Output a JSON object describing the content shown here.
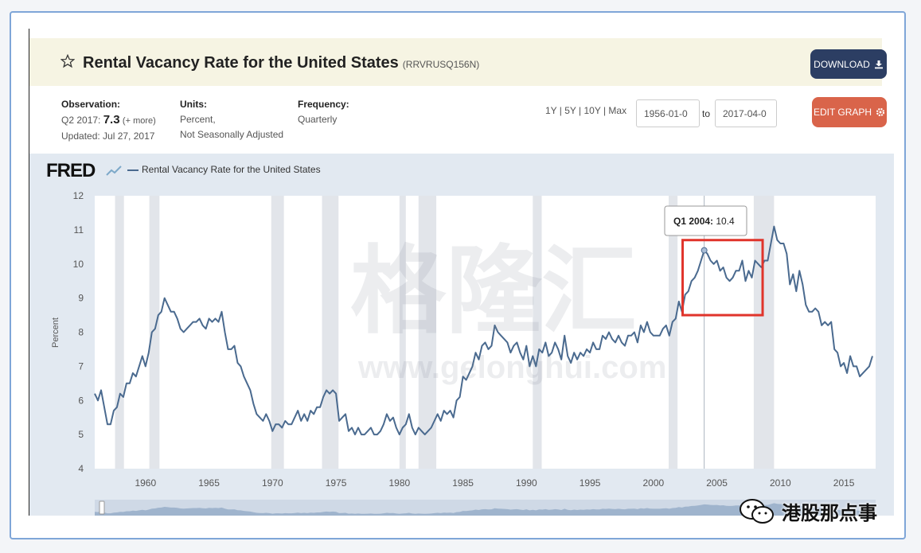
{
  "header": {
    "title": "Rental Vacancy Rate for the United States",
    "series_id": "(RRVRUSQ156N)",
    "download_label": "DOWNLOAD",
    "edit_graph_label": "EDIT GRAPH"
  },
  "meta": {
    "observation_label": "Observation:",
    "observation_period": "Q2 2017:",
    "observation_value": "7.3",
    "observation_more": "(+ more)",
    "updated": "Updated: Jul 27, 2017",
    "units_label": "Units:",
    "units_line1": "Percent,",
    "units_line2": "Not Seasonally Adjusted",
    "frequency_label": "Frequency:",
    "frequency_value": "Quarterly"
  },
  "range": {
    "presets": "1Y | 5Y | 10Y | Max",
    "start": "1956-01-0",
    "to_label": "to",
    "end": "2017-04-0"
  },
  "chart_legend": {
    "logo": "FRED",
    "series_label": "Rental Vacancy Rate for the United States"
  },
  "tooltip": {
    "period": "Q1 2004:",
    "value": "10.4"
  },
  "watermark": {
    "text": "格隆汇",
    "url": "www.gelonghui.com"
  },
  "wechat": {
    "account": "港股那点事"
  },
  "colors": {
    "line": "#4a6a8f",
    "recession": "#e2e5ea",
    "highlight_box": "#e0342b",
    "download": "#2c3e63",
    "edit": "#d9644a"
  },
  "chart_data": {
    "type": "line",
    "ylabel": "Percent",
    "ylim": [
      4,
      12
    ],
    "xlim": [
      1956.0,
      2017.5
    ],
    "yticks": [
      "4",
      "5",
      "6",
      "7",
      "8",
      "9",
      "10",
      "11",
      "12"
    ],
    "xticks": [
      "1960",
      "1965",
      "1970",
      "1975",
      "1980",
      "1985",
      "1990",
      "1995",
      "2000",
      "2005",
      "2010",
      "2015"
    ],
    "recessions": [
      [
        1957.6,
        1958.3
      ],
      [
        1960.3,
        1961.1
      ],
      [
        1969.9,
        1970.9
      ],
      [
        1973.9,
        1975.2
      ],
      [
        1980.0,
        1980.5
      ],
      [
        1981.5,
        1982.9
      ],
      [
        1990.5,
        1991.2
      ],
      [
        2001.2,
        2001.9
      ],
      [
        2007.9,
        2009.5
      ]
    ],
    "highlight": {
      "x": [
        2002.3,
        2008.6
      ],
      "y": [
        8.5,
        10.7
      ]
    },
    "series": [
      {
        "points": [
          [
            1956.0,
            6.2
          ],
          [
            1956.25,
            6.0
          ],
          [
            1956.5,
            6.3
          ],
          [
            1956.75,
            5.8
          ],
          [
            1957.0,
            5.3
          ],
          [
            1957.25,
            5.3
          ],
          [
            1957.5,
            5.7
          ],
          [
            1957.75,
            5.8
          ],
          [
            1958.0,
            6.2
          ],
          [
            1958.25,
            6.1
          ],
          [
            1958.5,
            6.5
          ],
          [
            1958.75,
            6.5
          ],
          [
            1959.0,
            6.8
          ],
          [
            1959.25,
            6.7
          ],
          [
            1959.5,
            7.0
          ],
          [
            1959.75,
            7.3
          ],
          [
            1960.0,
            7.0
          ],
          [
            1960.25,
            7.4
          ],
          [
            1960.5,
            8.0
          ],
          [
            1960.75,
            8.1
          ],
          [
            1961.0,
            8.5
          ],
          [
            1961.25,
            8.6
          ],
          [
            1961.5,
            9.0
          ],
          [
            1961.75,
            8.8
          ],
          [
            1962.0,
            8.6
          ],
          [
            1962.25,
            8.6
          ],
          [
            1962.5,
            8.4
          ],
          [
            1962.75,
            8.1
          ],
          [
            1963.0,
            8.0
          ],
          [
            1963.25,
            8.1
          ],
          [
            1963.5,
            8.2
          ],
          [
            1963.75,
            8.3
          ],
          [
            1964.0,
            8.3
          ],
          [
            1964.25,
            8.4
          ],
          [
            1964.5,
            8.2
          ],
          [
            1964.75,
            8.1
          ],
          [
            1965.0,
            8.4
          ],
          [
            1965.25,
            8.3
          ],
          [
            1965.5,
            8.4
          ],
          [
            1965.75,
            8.3
          ],
          [
            1966.0,
            8.6
          ],
          [
            1966.25,
            8.0
          ],
          [
            1966.5,
            7.5
          ],
          [
            1966.75,
            7.5
          ],
          [
            1967.0,
            7.6
          ],
          [
            1967.25,
            7.1
          ],
          [
            1967.5,
            7.0
          ],
          [
            1967.75,
            6.7
          ],
          [
            1968.0,
            6.5
          ],
          [
            1968.25,
            6.3
          ],
          [
            1968.5,
            5.9
          ],
          [
            1968.75,
            5.6
          ],
          [
            1969.0,
            5.5
          ],
          [
            1969.25,
            5.4
          ],
          [
            1969.5,
            5.6
          ],
          [
            1969.75,
            5.4
          ],
          [
            1970.0,
            5.1
          ],
          [
            1970.25,
            5.3
          ],
          [
            1970.5,
            5.3
          ],
          [
            1970.75,
            5.2
          ],
          [
            1971.0,
            5.4
          ],
          [
            1971.25,
            5.3
          ],
          [
            1971.5,
            5.3
          ],
          [
            1971.75,
            5.5
          ],
          [
            1972.0,
            5.7
          ],
          [
            1972.25,
            5.4
          ],
          [
            1972.5,
            5.6
          ],
          [
            1972.75,
            5.4
          ],
          [
            1973.0,
            5.7
          ],
          [
            1973.25,
            5.6
          ],
          [
            1973.5,
            5.8
          ],
          [
            1973.75,
            5.8
          ],
          [
            1974.0,
            6.1
          ],
          [
            1974.25,
            6.3
          ],
          [
            1974.5,
            6.2
          ],
          [
            1974.75,
            6.3
          ],
          [
            1975.0,
            6.2
          ],
          [
            1975.25,
            5.4
          ],
          [
            1975.5,
            5.5
          ],
          [
            1975.75,
            5.6
          ],
          [
            1976.0,
            5.1
          ],
          [
            1976.25,
            5.2
          ],
          [
            1976.5,
            5.0
          ],
          [
            1976.75,
            5.2
          ],
          [
            1977.0,
            5.0
          ],
          [
            1977.25,
            5.0
          ],
          [
            1977.5,
            5.1
          ],
          [
            1977.75,
            5.2
          ],
          [
            1978.0,
            5.0
          ],
          [
            1978.25,
            5.0
          ],
          [
            1978.5,
            5.1
          ],
          [
            1978.75,
            5.3
          ],
          [
            1979.0,
            5.6
          ],
          [
            1979.25,
            5.4
          ],
          [
            1979.5,
            5.5
          ],
          [
            1979.75,
            5.2
          ],
          [
            1980.0,
            5.0
          ],
          [
            1980.25,
            5.2
          ],
          [
            1980.5,
            5.3
          ],
          [
            1980.75,
            5.6
          ],
          [
            1981.0,
            5.2
          ],
          [
            1981.25,
            5.0
          ],
          [
            1981.5,
            5.2
          ],
          [
            1981.75,
            5.1
          ],
          [
            1982.0,
            5.0
          ],
          [
            1982.25,
            5.1
          ],
          [
            1982.5,
            5.2
          ],
          [
            1982.75,
            5.4
          ],
          [
            1983.0,
            5.6
          ],
          [
            1983.25,
            5.4
          ],
          [
            1983.5,
            5.7
          ],
          [
            1983.75,
            5.6
          ],
          [
            1984.0,
            5.7
          ],
          [
            1984.25,
            5.5
          ],
          [
            1984.5,
            6.0
          ],
          [
            1984.75,
            6.1
          ],
          [
            1985.0,
            6.7
          ],
          [
            1985.25,
            6.6
          ],
          [
            1985.5,
            6.8
          ],
          [
            1985.75,
            7.0
          ],
          [
            1986.0,
            7.4
          ],
          [
            1986.25,
            7.2
          ],
          [
            1986.5,
            7.6
          ],
          [
            1986.75,
            7.7
          ],
          [
            1987.0,
            7.5
          ],
          [
            1987.25,
            7.6
          ],
          [
            1987.5,
            8.2
          ],
          [
            1987.75,
            8.0
          ],
          [
            1988.0,
            7.9
          ],
          [
            1988.25,
            7.8
          ],
          [
            1988.5,
            7.7
          ],
          [
            1988.75,
            7.4
          ],
          [
            1989.0,
            7.6
          ],
          [
            1989.25,
            7.7
          ],
          [
            1989.5,
            7.4
          ],
          [
            1989.75,
            7.2
          ],
          [
            1990.0,
            7.6
          ],
          [
            1990.25,
            7.0
          ],
          [
            1990.5,
            7.3
          ],
          [
            1990.75,
            7.0
          ],
          [
            1991.0,
            7.5
          ],
          [
            1991.25,
            7.4
          ],
          [
            1991.5,
            7.7
          ],
          [
            1991.75,
            7.3
          ],
          [
            1992.0,
            7.4
          ],
          [
            1992.25,
            7.7
          ],
          [
            1992.5,
            7.5
          ],
          [
            1992.75,
            7.2
          ],
          [
            1993.0,
            7.9
          ],
          [
            1993.25,
            7.3
          ],
          [
            1993.5,
            7.1
          ],
          [
            1993.75,
            7.4
          ],
          [
            1994.0,
            7.2
          ],
          [
            1994.25,
            7.4
          ],
          [
            1994.5,
            7.3
          ],
          [
            1994.75,
            7.5
          ],
          [
            1995.0,
            7.4
          ],
          [
            1995.25,
            7.7
          ],
          [
            1995.5,
            7.5
          ],
          [
            1995.75,
            7.5
          ],
          [
            1996.0,
            7.9
          ],
          [
            1996.25,
            7.8
          ],
          [
            1996.5,
            8.0
          ],
          [
            1996.75,
            7.8
          ],
          [
            1997.0,
            7.7
          ],
          [
            1997.25,
            7.9
          ],
          [
            1997.5,
            7.7
          ],
          [
            1997.75,
            7.6
          ],
          [
            1998.0,
            7.9
          ],
          [
            1998.25,
            7.9
          ],
          [
            1998.5,
            8.0
          ],
          [
            1998.75,
            7.7
          ],
          [
            1999.0,
            8.2
          ],
          [
            1999.25,
            8.0
          ],
          [
            1999.5,
            8.3
          ],
          [
            1999.75,
            8.0
          ],
          [
            2000.0,
            7.9
          ],
          [
            2000.25,
            7.9
          ],
          [
            2000.5,
            7.9
          ],
          [
            2000.75,
            8.1
          ],
          [
            2001.0,
            8.2
          ],
          [
            2001.25,
            7.9
          ],
          [
            2001.5,
            8.3
          ],
          [
            2001.75,
            8.4
          ],
          [
            2002.0,
            8.9
          ],
          [
            2002.25,
            8.6
          ],
          [
            2002.5,
            9.1
          ],
          [
            2002.75,
            9.2
          ],
          [
            2003.0,
            9.5
          ],
          [
            2003.25,
            9.6
          ],
          [
            2003.5,
            9.8
          ],
          [
            2003.75,
            10.1
          ],
          [
            2004.0,
            10.4
          ],
          [
            2004.25,
            10.3
          ],
          [
            2004.5,
            10.1
          ],
          [
            2004.75,
            10.0
          ],
          [
            2005.0,
            10.1
          ],
          [
            2005.25,
            9.8
          ],
          [
            2005.5,
            9.9
          ],
          [
            2005.75,
            9.6
          ],
          [
            2006.0,
            9.5
          ],
          [
            2006.25,
            9.6
          ],
          [
            2006.5,
            9.8
          ],
          [
            2006.75,
            9.8
          ],
          [
            2007.0,
            10.1
          ],
          [
            2007.25,
            9.5
          ],
          [
            2007.5,
            9.8
          ],
          [
            2007.75,
            9.6
          ],
          [
            2008.0,
            10.1
          ],
          [
            2008.25,
            10.0
          ],
          [
            2008.5,
            9.9
          ],
          [
            2008.75,
            10.1
          ],
          [
            2009.0,
            10.1
          ],
          [
            2009.25,
            10.6
          ],
          [
            2009.5,
            11.1
          ],
          [
            2009.75,
            10.7
          ],
          [
            2010.0,
            10.6
          ],
          [
            2010.25,
            10.6
          ],
          [
            2010.5,
            10.3
          ],
          [
            2010.75,
            9.4
          ],
          [
            2011.0,
            9.7
          ],
          [
            2011.25,
            9.2
          ],
          [
            2011.5,
            9.8
          ],
          [
            2011.75,
            9.4
          ],
          [
            2012.0,
            8.8
          ],
          [
            2012.25,
            8.6
          ],
          [
            2012.5,
            8.6
          ],
          [
            2012.75,
            8.7
          ],
          [
            2013.0,
            8.6
          ],
          [
            2013.25,
            8.2
          ],
          [
            2013.5,
            8.3
          ],
          [
            2013.75,
            8.2
          ],
          [
            2014.0,
            8.3
          ],
          [
            2014.25,
            7.5
          ],
          [
            2014.5,
            7.4
          ],
          [
            2014.75,
            7.0
          ],
          [
            2015.0,
            7.1
          ],
          [
            2015.25,
            6.8
          ],
          [
            2015.5,
            7.3
          ],
          [
            2015.75,
            7.0
          ],
          [
            2016.0,
            7.0
          ],
          [
            2016.25,
            6.7
          ],
          [
            2016.5,
            6.8
          ],
          [
            2016.75,
            6.9
          ],
          [
            2017.0,
            7.0
          ],
          [
            2017.25,
            7.3
          ]
        ]
      }
    ]
  }
}
